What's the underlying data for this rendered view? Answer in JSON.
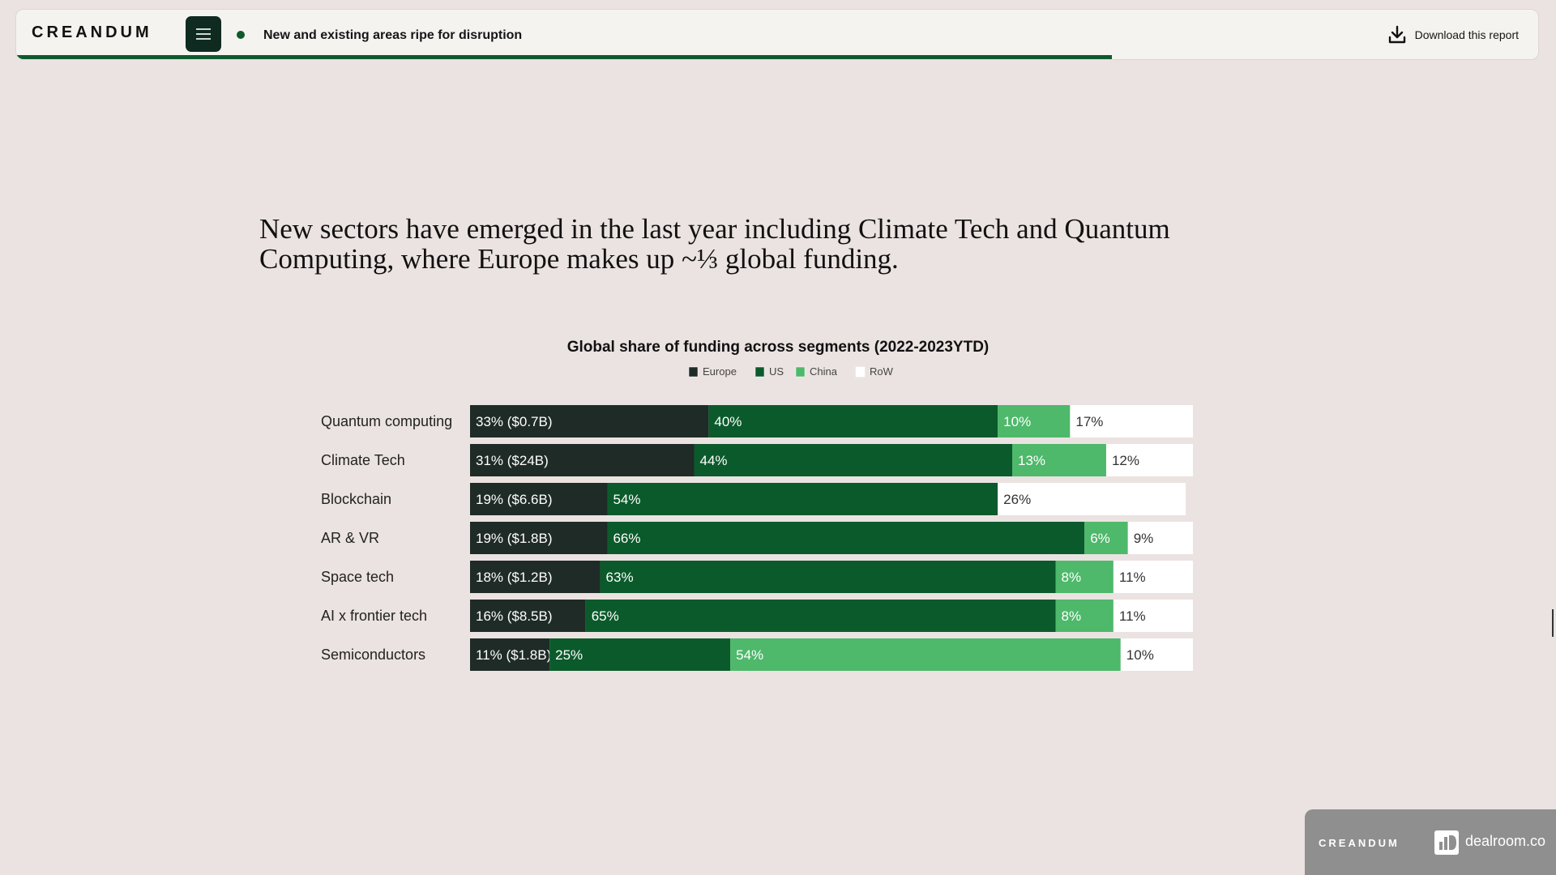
{
  "header": {
    "brand": "CREANDUM",
    "section_title": "New and existing areas ripe for disruption",
    "download_label": "Download this report",
    "progress": 0.72
  },
  "headline": "New sectors have emerged in the last year including Climate Tech and Quantum Computing, where Europe makes up ~⅓ global funding.",
  "footer": {
    "brand": "CREANDUM",
    "partner": "dealroom.co"
  },
  "colors": {
    "europe": "#1f2b27",
    "us": "#0b5a2b",
    "china": "#4eb86b",
    "row": "#ffffff",
    "accent": "#0e5a2f"
  },
  "chart_data": {
    "type": "bar",
    "orientation": "horizontal",
    "stacked": true,
    "title": "Global share of funding across segments (2022-2023YTD)",
    "xlim": [
      0,
      100
    ],
    "grid": false,
    "legend_position": "top-center",
    "categories": [
      "Quantum computing",
      "Climate Tech",
      "Blockchain",
      "AR & VR",
      "Space tech",
      "AI x frontier tech",
      "Semiconductors"
    ],
    "series": [
      {
        "name": "Europe",
        "color": "#1f2b27",
        "values": [
          33,
          31,
          19,
          19,
          18,
          16,
          11
        ],
        "labels": [
          "33% ($0.7B)",
          "31% ($24B)",
          "19% ($6.6B)",
          "19% ($1.8B)",
          "18% ($1.2B)",
          "16% ($8.5B)",
          "11% ($1.8B)"
        ]
      },
      {
        "name": "US",
        "color": "#0b5a2b",
        "values": [
          40,
          44,
          54,
          66,
          63,
          65,
          25
        ],
        "labels": [
          "40%",
          "44%",
          "54%",
          "66%",
          "63%",
          "65%",
          "25%"
        ]
      },
      {
        "name": "China",
        "color": "#4eb86b",
        "values": [
          10,
          13,
          0,
          6,
          8,
          8,
          54
        ],
        "labels": [
          "10%",
          "13%",
          "",
          "6%",
          "8%",
          "8%",
          "54%"
        ]
      },
      {
        "name": "RoW",
        "color": "#ffffff",
        "values": [
          17,
          12,
          26,
          9,
          11,
          11,
          10
        ],
        "labels": [
          "17%",
          "12%",
          "26%",
          "9%",
          "11%",
          "11%",
          "10%"
        ]
      }
    ]
  }
}
